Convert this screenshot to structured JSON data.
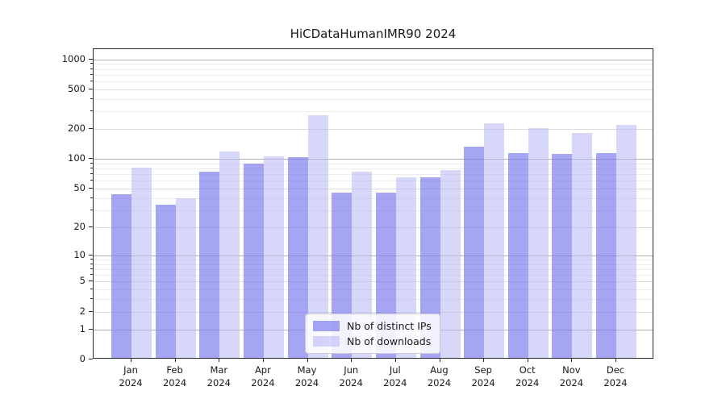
{
  "chart_data": {
    "type": "bar",
    "title": "HiCDataHumanIMR90 2024",
    "categories": [
      {
        "month": "Jan",
        "year": "2024"
      },
      {
        "month": "Feb",
        "year": "2024"
      },
      {
        "month": "Mar",
        "year": "2024"
      },
      {
        "month": "Apr",
        "year": "2024"
      },
      {
        "month": "May",
        "year": "2024"
      },
      {
        "month": "Jun",
        "year": "2024"
      },
      {
        "month": "Jul",
        "year": "2024"
      },
      {
        "month": "Aug",
        "year": "2024"
      },
      {
        "month": "Sep",
        "year": "2024"
      },
      {
        "month": "Oct",
        "year": "2024"
      },
      {
        "month": "Nov",
        "year": "2024"
      },
      {
        "month": "Dec",
        "year": "2024"
      }
    ],
    "series": [
      {
        "name": "Nb of distinct IPs",
        "color": "rgba(122,122,237,0.68)",
        "values": [
          42,
          33,
          72,
          87,
          101,
          44,
          44,
          63,
          129,
          110,
          108,
          110
        ]
      },
      {
        "name": "Nb of downloads",
        "color": "rgba(183,183,246,0.55)",
        "values": [
          78,
          38,
          115,
          102,
          265,
          72,
          63,
          75,
          218,
          196,
          177,
          213
        ]
      }
    ],
    "xlabel": "",
    "ylabel": "",
    "y_scale": "log1p",
    "ylim": [
      0,
      1260
    ],
    "y_ticks": [
      0,
      1,
      2,
      5,
      10,
      20,
      50,
      100,
      200,
      500,
      1000
    ],
    "gridlines": {
      "major": [
        1,
        10,
        100,
        1000
      ],
      "mid": [
        2,
        5,
        20,
        50,
        200,
        500
      ],
      "minor": [
        3,
        4,
        6,
        7,
        8,
        9,
        30,
        40,
        60,
        70,
        80,
        90,
        300,
        400,
        600,
        700,
        800,
        900
      ]
    },
    "grid": true,
    "legend_position": "lower center"
  }
}
